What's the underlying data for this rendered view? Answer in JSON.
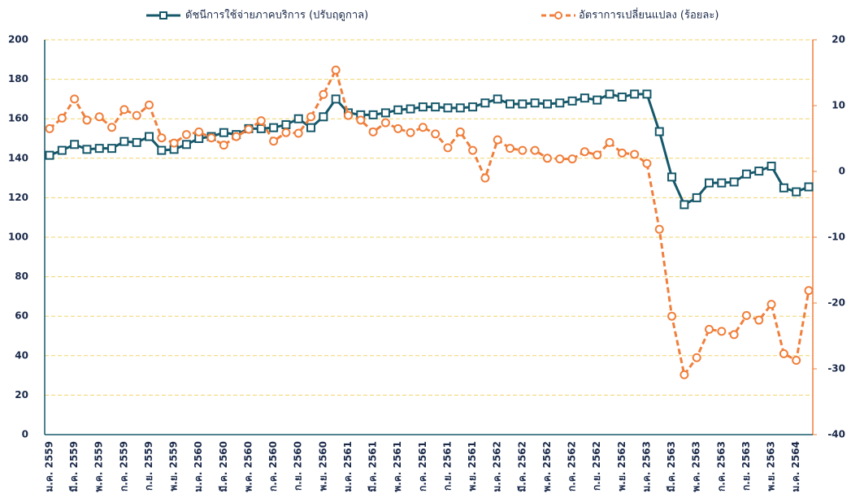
{
  "chart_data": {
    "type": "line",
    "categories": [
      "ม.ค. 2559",
      null,
      "มี.ค. 2559",
      null,
      "พ.ค. 2559",
      null,
      "ก.ค. 2559",
      null,
      "ก.ย. 2559",
      null,
      "พ.ย. 2559",
      null,
      "ม.ค. 2560",
      null,
      "มี.ค. 2560",
      null,
      "พ.ค. 2560",
      null,
      "ก.ค. 2560",
      null,
      "ก.ย. 2560",
      null,
      "พ.ย. 2560",
      null,
      "ม.ค. 2561",
      null,
      "มี.ค. 2561",
      null,
      "พ.ค. 2561",
      null,
      "ก.ค. 2561",
      null,
      "ก.ย. 2561",
      null,
      "พ.ย. 2561",
      null,
      "ม.ค. 2562",
      null,
      "มี.ค. 2562",
      null,
      "พ.ค. 2562",
      null,
      "ก.ค. 2562",
      null,
      "ก.ย. 2562",
      null,
      "พ.ย. 2562",
      null,
      "ม.ค. 2563",
      null,
      "มี.ค. 2563",
      null,
      "พ.ค. 2563",
      null,
      "ก.ค. 2563",
      null,
      "ก.ย. 2563",
      null,
      "พ.ย. 2563",
      null,
      "ม.ค. 2564",
      null
    ],
    "series": [
      {
        "name": "ดัชนีการใช้จ่ายภาคบริการ (ปรับฤดูกาล)",
        "color": "#16586a",
        "marker": "square",
        "dashed": false,
        "values": [
          141.5,
          144,
          147,
          144.5,
          145,
          145,
          148.5,
          148,
          151,
          144,
          144.5,
          147,
          150,
          151,
          153,
          152,
          155,
          155,
          155.5,
          157,
          160,
          155.5,
          161,
          170,
          163,
          162,
          162,
          163,
          164.5,
          165,
          166,
          166,
          165.5,
          165.5,
          166,
          168,
          170,
          167.5,
          167.5,
          168,
          167.5,
          168,
          169,
          170.5,
          169.5,
          172.5,
          171,
          172.5,
          172.5,
          153.5,
          130.5,
          116.5,
          120,
          127.5,
          127.5,
          128,
          132,
          133.5,
          136,
          125,
          123,
          125.5
        ]
      },
      {
        "name": "อัตราการเปลี่ยนแปลง (ร้อยละ)",
        "color": "#f07f3c",
        "marker": "circle",
        "dashed": true,
        "axis": "y2",
        "values": [
          6.5,
          8.1,
          11,
          7.8,
          8.3,
          6.7,
          9.4,
          8.5,
          10.1,
          5.1,
          4.3,
          5.6,
          6,
          5.1,
          4,
          5.3,
          6.4,
          7.7,
          4.6,
          5.9,
          5.8,
          8.3,
          11.7,
          15.4,
          8.5,
          7.8,
          6,
          7.4,
          6.5,
          5.9,
          6.7,
          5.7,
          3.6,
          6,
          3.2,
          -1,
          4.8,
          3.5,
          3.2,
          3.2,
          2,
          1.9,
          1.9,
          3,
          2.5,
          4.4,
          2.8,
          2.6,
          1.2,
          -8.8,
          -22,
          -30.9,
          -28.3,
          -24,
          -24.3,
          -24.8,
          -21.9,
          -22.6,
          -20.2,
          -27.7,
          -28.7,
          -18.1
        ]
      }
    ],
    "ylim": [
      0,
      200
    ],
    "yticks": [
      0,
      20,
      40,
      60,
      80,
      100,
      120,
      140,
      160,
      180,
      200
    ],
    "y2lim": [
      -40,
      20
    ],
    "y2ticks": [
      -40,
      -30,
      -20,
      -10,
      0,
      10,
      20
    ],
    "grid": true,
    "legend": "top"
  }
}
